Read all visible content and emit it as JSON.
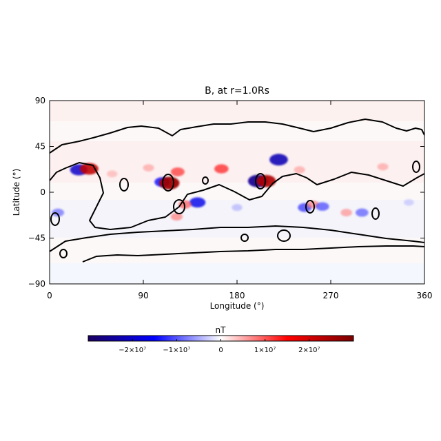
{
  "chart_data": {
    "type": "heatmap",
    "title": "B, at r=1.0Rs",
    "xlabel": "Longitude (°)",
    "ylabel": "Latitude (°)",
    "xlim": [
      0,
      360
    ],
    "ylim": [
      -90,
      90
    ],
    "xticks": [
      "0",
      "90",
      "180",
      "270",
      "360"
    ],
    "yticks": [
      "90",
      "45",
      "0",
      "−45",
      "−90"
    ],
    "colorbar": {
      "label": "nT",
      "range": [
        -30000000,
        30000000
      ],
      "tick_labels": [
        "−2×10⁷",
        "−1×10⁷",
        "0",
        "1×10⁷",
        "2×10⁷"
      ],
      "tick_values": [
        -20000000,
        -10000000,
        0,
        10000000,
        20000000
      ],
      "colors": [
        "#1b0060",
        "#0000ff",
        "#ffffff",
        "#ff0000",
        "#7a0000"
      ]
    },
    "features": [
      {
        "lon": 28,
        "lat": 22,
        "value": -20000000
      },
      {
        "lon": 38,
        "lat": 23,
        "value": 22000000
      },
      {
        "lon": 8,
        "lat": -20,
        "value": -9000000
      },
      {
        "lon": 108,
        "lat": 10,
        "value": -15000000
      },
      {
        "lon": 115,
        "lat": 9,
        "value": 26000000
      },
      {
        "lon": 123,
        "lat": 20,
        "value": 12000000
      },
      {
        "lon": 95,
        "lat": 24,
        "value": 6000000
      },
      {
        "lon": 165,
        "lat": 23,
        "value": 13000000
      },
      {
        "lon": 142,
        "lat": -10,
        "value": -17000000
      },
      {
        "lon": 130,
        "lat": -12,
        "value": 10000000
      },
      {
        "lon": 122,
        "lat": -24,
        "value": 8000000
      },
      {
        "lon": 200,
        "lat": 11,
        "value": -25000000
      },
      {
        "lon": 208,
        "lat": 11,
        "value": 24000000
      },
      {
        "lon": 220,
        "lat": 32,
        "value": -22000000
      },
      {
        "lon": 245,
        "lat": -15,
        "value": -12000000
      },
      {
        "lon": 253,
        "lat": -12,
        "value": 8000000
      },
      {
        "lon": 262,
        "lat": -14,
        "value": -11000000
      },
      {
        "lon": 285,
        "lat": -20,
        "value": 7000000
      },
      {
        "lon": 300,
        "lat": -20,
        "value": -10000000
      },
      {
        "lon": 180,
        "lat": -15,
        "value": -5000000
      },
      {
        "lon": 240,
        "lat": 22,
        "value": 6000000
      },
      {
        "lon": 320,
        "lat": 25,
        "value": 6000000
      },
      {
        "lon": 345,
        "lat": -10,
        "value": -4000000
      },
      {
        "lon": 60,
        "lat": 18,
        "value": 5000000
      }
    ]
  }
}
